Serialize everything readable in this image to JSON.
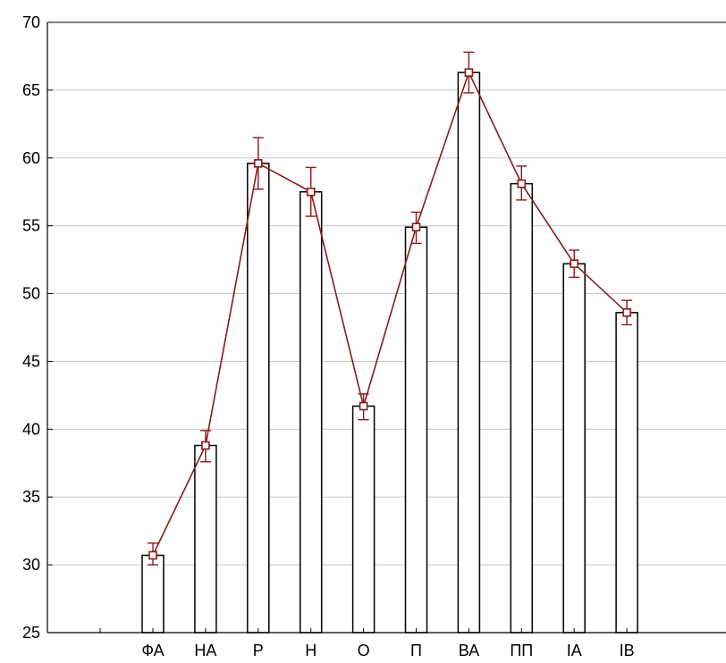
{
  "chart_data": {
    "type": "bar",
    "categories": [
      "ФА",
      "НА",
      "Р",
      "Н",
      "О",
      "П",
      "ВА",
      "ПП",
      "ІА",
      "ІВ"
    ],
    "series": [
      {
        "values": [
          30.7,
          38.8,
          59.6,
          57.5,
          41.7,
          54.9,
          66.3,
          58.1,
          52.2,
          48.6
        ],
        "error_upper": [
          31.6,
          39.9,
          61.5,
          59.3,
          42.6,
          56.0,
          67.8,
          59.4,
          53.2,
          49.5
        ],
        "error_lower": [
          30.0,
          37.6,
          57.7,
          55.7,
          40.7,
          53.7,
          64.8,
          56.9,
          51.2,
          47.7
        ]
      }
    ],
    "overlay": "line-with-square-markers",
    "ylim": [
      25,
      70
    ],
    "yticks": [
      "25",
      "30",
      "35",
      "40",
      "45",
      "50",
      "55",
      "60",
      "65",
      "70"
    ],
    "xlabel": "",
    "ylabel": "",
    "grid": "horizontal",
    "colors": {
      "bar_fill": "#ffffff",
      "bar_edge": "#000000",
      "line": "#8b1a1a",
      "marker": "#8b1a1a",
      "grid": "#c8c8c8",
      "axis": "#000000"
    }
  }
}
